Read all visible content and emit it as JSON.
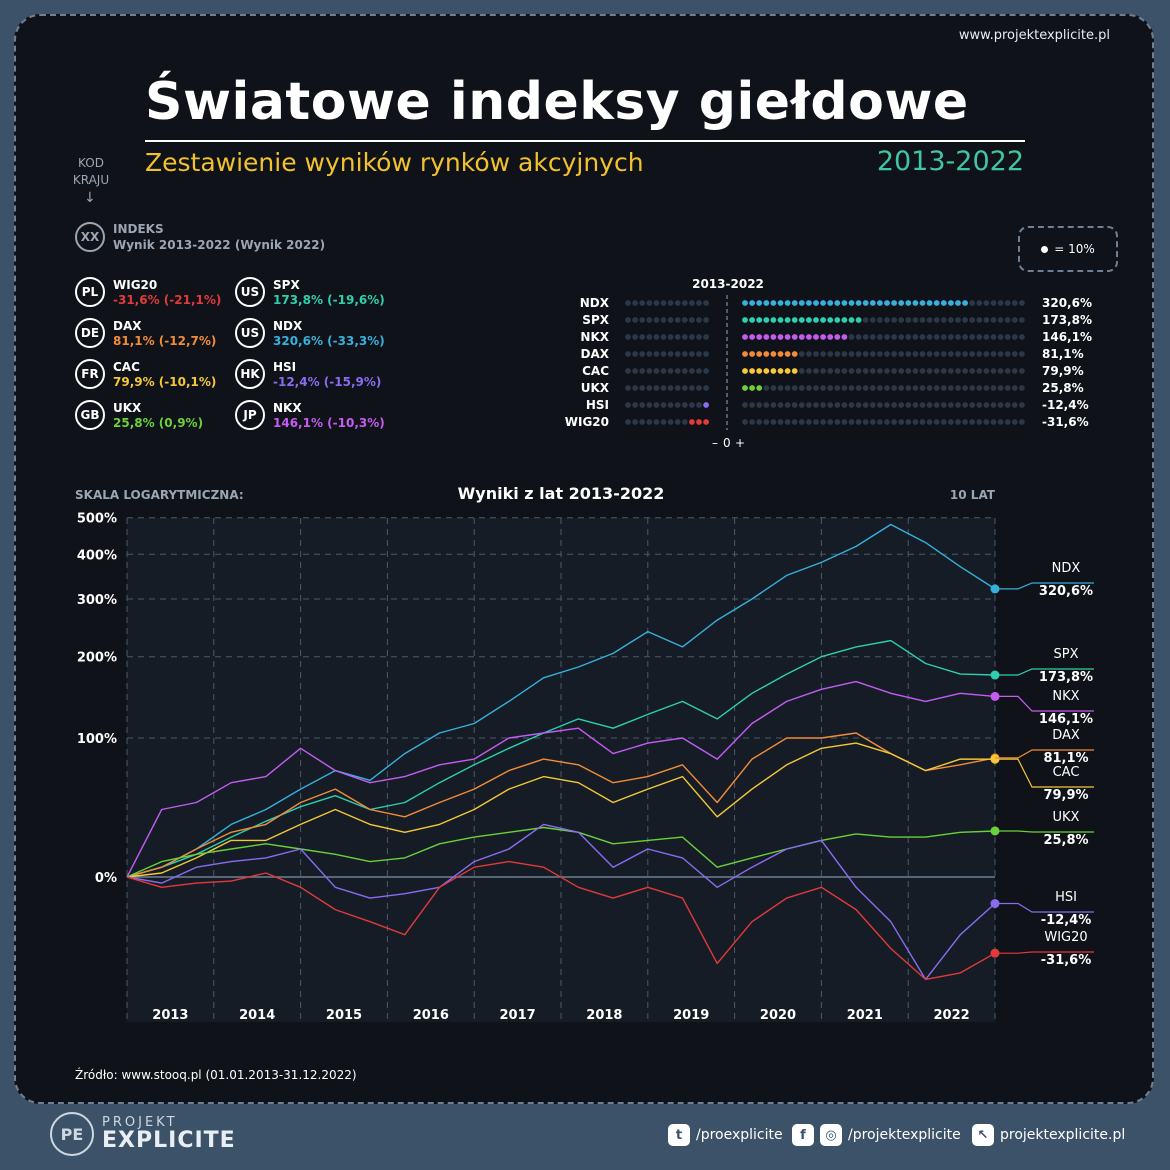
{
  "site_url": "www.projektexplicite.pl",
  "title": "Światowe indeksy giełdowe",
  "subtitle": "Zestawienie wyników rynków akcyjnych",
  "years": "2013-2022",
  "key": {
    "code_label_1": "KOD",
    "code_label_2": "KRAJU",
    "arrow": "↓",
    "example_code": "XX",
    "example_name": "INDEKS",
    "example_desc": "Wynik 2013-2022 (Wynik 2022)"
  },
  "legend": [
    {
      "code": "PL",
      "name": "WIG20",
      "value": "-31,6% (-21,1%)",
      "color": "#e23a3a"
    },
    {
      "code": "DE",
      "name": "DAX",
      "value": "81,1% (-12,7%)",
      "color": "#f28c38"
    },
    {
      "code": "FR",
      "name": "CAC",
      "value": "79,9% (-10,1%)",
      "color": "#f5c838"
    },
    {
      "code": "GB",
      "name": "UKX",
      "value": "25,8% (0,9%)",
      "color": "#6ad13a"
    },
    {
      "code": "US",
      "name": "SPX",
      "value": "173,8% (-19,6%)",
      "color": "#2ecfae"
    },
    {
      "code": "US",
      "name": "NDX",
      "value": "320,6% (-33,3%)",
      "color": "#36b0dc"
    },
    {
      "code": "HK",
      "name": "HSI",
      "value": "-12,4% (-15,9%)",
      "color": "#8a6cf0"
    },
    {
      "code": "JP",
      "name": "NKX",
      "value": "146,1% (-10,3%)",
      "color": "#c45cf0"
    }
  ],
  "dot_key": {
    "label": "= 10%"
  },
  "dot_chart": {
    "title": "2013-2022",
    "axis_label_minus": "–",
    "axis_label_zero": "0",
    "axis_label_plus": "+",
    "rows": [
      {
        "name": "NDX",
        "pct": 320.6,
        "label": "320,6%",
        "color": "#36b0dc"
      },
      {
        "name": "SPX",
        "pct": 173.8,
        "label": "173,8%",
        "color": "#2ecfae"
      },
      {
        "name": "NKX",
        "pct": 146.1,
        "label": "146,1%",
        "color": "#c45cf0"
      },
      {
        "name": "DAX",
        "pct": 81.1,
        "label": "81,1%",
        "color": "#f28c38"
      },
      {
        "name": "CAC",
        "pct": 79.9,
        "label": "79,9%",
        "color": "#f5c838"
      },
      {
        "name": "UKX",
        "pct": 25.8,
        "label": "25,8%",
        "color": "#6ad13a"
      },
      {
        "name": "HSI",
        "pct": -12.4,
        "label": "-12,4%",
        "color": "#8a6cf0"
      },
      {
        "name": "WIG20",
        "pct": -31.6,
        "label": "-31,6%",
        "color": "#e23a3a"
      }
    ]
  },
  "chart_data": {
    "type": "line",
    "title": "Wyniki z lat 2013-2022",
    "scale_label": "SKALA LOGARYTMICZNA:",
    "period_label": "10 LAT",
    "y_ticks": [
      "500%",
      "400%",
      "300%",
      "200%",
      "100%",
      "0%"
    ],
    "x_ticks": [
      "2013",
      "2014",
      "2015",
      "2016",
      "2017",
      "2018",
      "2019",
      "2020",
      "2021",
      "2022"
    ],
    "series": [
      {
        "name": "NDX",
        "color": "#36b0dc",
        "end_label": "320,6%",
        "values": [
          0,
          5,
          15,
          30,
          40,
          55,
          70,
          62,
          85,
          105,
          115,
          140,
          170,
          185,
          205,
          240,
          215,
          260,
          300,
          350,
          380,
          420,
          480,
          430,
          370,
          320.6
        ]
      },
      {
        "name": "SPX",
        "color": "#2ecfae",
        "end_label": "173,8%",
        "values": [
          0,
          5,
          12,
          22,
          32,
          42,
          50,
          40,
          45,
          60,
          75,
          90,
          105,
          120,
          110,
          125,
          140,
          120,
          150,
          175,
          200,
          215,
          225,
          190,
          175,
          173.8
        ]
      },
      {
        "name": "NKX",
        "color": "#c45cf0",
        "end_label": "146,1%",
        "values": [
          0,
          40,
          45,
          60,
          65,
          90,
          70,
          60,
          65,
          75,
          80,
          100,
          105,
          110,
          85,
          95,
          100,
          80,
          115,
          140,
          155,
          165,
          150,
          140,
          150,
          146.1
        ]
      },
      {
        "name": "DAX",
        "color": "#f28c38",
        "end_label": "81,1%",
        "values": [
          0,
          5,
          15,
          25,
          30,
          45,
          55,
          40,
          35,
          45,
          55,
          70,
          80,
          75,
          60,
          65,
          75,
          45,
          80,
          100,
          100,
          105,
          85,
          70,
          75,
          81.1
        ]
      },
      {
        "name": "CAC",
        "color": "#f5c838",
        "end_label": "79,9%",
        "values": [
          0,
          2,
          10,
          20,
          20,
          30,
          40,
          30,
          25,
          30,
          40,
          55,
          65,
          60,
          45,
          55,
          65,
          35,
          55,
          75,
          90,
          95,
          85,
          70,
          80,
          79.9
        ]
      },
      {
        "name": "UKX",
        "color": "#6ad13a",
        "end_label": "25,8%",
        "values": [
          0,
          8,
          12,
          15,
          18,
          15,
          12,
          8,
          10,
          18,
          22,
          25,
          28,
          25,
          18,
          20,
          22,
          5,
          10,
          15,
          20,
          24,
          22,
          22,
          25,
          25.8
        ]
      },
      {
        "name": "HSI",
        "color": "#8a6cf0",
        "end_label": "-12,4%",
        "values": [
          0,
          -3,
          5,
          8,
          10,
          15,
          -5,
          -10,
          -8,
          -5,
          8,
          15,
          30,
          25,
          5,
          15,
          10,
          -5,
          5,
          15,
          20,
          -5,
          -20,
          -40,
          -25,
          -12.4
        ]
      },
      {
        "name": "WIG20",
        "color": "#e23a3a",
        "end_label": "-31,6%",
        "values": [
          0,
          -5,
          -3,
          -2,
          2,
          -5,
          -15,
          -20,
          -25,
          -5,
          5,
          8,
          5,
          -5,
          -10,
          -5,
          -10,
          -35,
          -20,
          -10,
          -5,
          -15,
          -30,
          -40,
          -38,
          -31.6
        ]
      }
    ]
  },
  "source": "Źródło: www.stooq.pl (01.01.2013-31.12.2022)",
  "brand": {
    "line1": "PROJEKT",
    "line2": "EXPLICITE",
    "logo": "PE"
  },
  "social": [
    {
      "icon": "twitter-icon",
      "glyph": "t",
      "label": "/proexplicite"
    },
    {
      "icon": "facebook-instagram-icon",
      "glyph": "f",
      "label": "/projektexplicite"
    },
    {
      "icon": "cursor-icon",
      "glyph": "↖",
      "label": "projektexplicite.pl"
    }
  ]
}
